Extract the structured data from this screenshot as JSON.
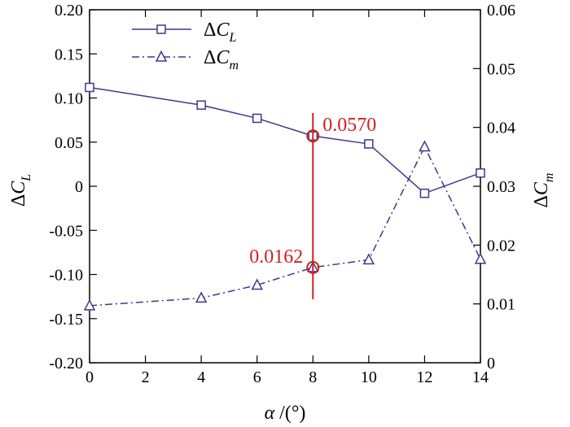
{
  "chart_data": {
    "type": "line",
    "x": [
      0,
      4,
      6,
      8,
      10,
      12,
      14
    ],
    "xlim": [
      0,
      14
    ],
    "x_ticks": [
      0,
      2,
      4,
      6,
      8,
      10,
      12,
      14
    ],
    "x_tick_labels": [
      "0",
      "2",
      "4",
      "6",
      "8",
      "10",
      "12",
      "14"
    ],
    "xlabel": {
      "symbol": "α",
      "unit": " /(°)"
    },
    "ylim_left": [
      -0.2,
      0.2
    ],
    "left_ticks": [
      -0.2,
      -0.15,
      -0.1,
      -0.05,
      0,
      0.05,
      0.1,
      0.15,
      0.2
    ],
    "left_tick_labels": [
      "-0.20",
      "-0.15",
      "-0.10",
      "-0.05",
      "0",
      "0.05",
      "0.10",
      "0.15",
      "0.20"
    ],
    "ylabel_left": {
      "delta": "Δ",
      "var": "C",
      "sub": "L"
    },
    "ylim_right": [
      0,
      0.06
    ],
    "right_ticks": [
      0,
      0.01,
      0.02,
      0.03,
      0.04,
      0.05,
      0.06
    ],
    "right_tick_labels": [
      "0",
      "0.01",
      "0.02",
      "0.03",
      "0.04",
      "0.05",
      "0.06"
    ],
    "ylabel_right": {
      "delta": "Δ",
      "var": "C",
      "sub": "m"
    },
    "grid": false,
    "legend_position": "top-left",
    "series": [
      {
        "name": {
          "delta": "Δ",
          "var": "C",
          "sub": "L"
        },
        "axis": "left",
        "marker": "square",
        "line_style": "solid",
        "color": "#3a3a8c",
        "values": [
          0.112,
          0.092,
          0.077,
          0.057,
          0.048,
          -0.008,
          0.015
        ]
      },
      {
        "name": {
          "delta": "Δ",
          "var": "C",
          "sub": "m"
        },
        "axis": "right",
        "marker": "triangle",
        "line_style": "dashdot",
        "color": "#3a3a8c",
        "values": [
          0.0097,
          0.011,
          0.0132,
          0.0162,
          0.0175,
          0.0367,
          0.0176
        ]
      }
    ],
    "annotations": [
      {
        "text": "0.0570",
        "x": 8,
        "series": 0,
        "color": "#cc2222"
      },
      {
        "text": "0.0162",
        "x": 8,
        "series": 1,
        "color": "#cc2222"
      }
    ],
    "marker_line": {
      "x": 8,
      "y_from_left": -0.128,
      "y_to_left": 0.083,
      "color": "#cc2222"
    }
  }
}
